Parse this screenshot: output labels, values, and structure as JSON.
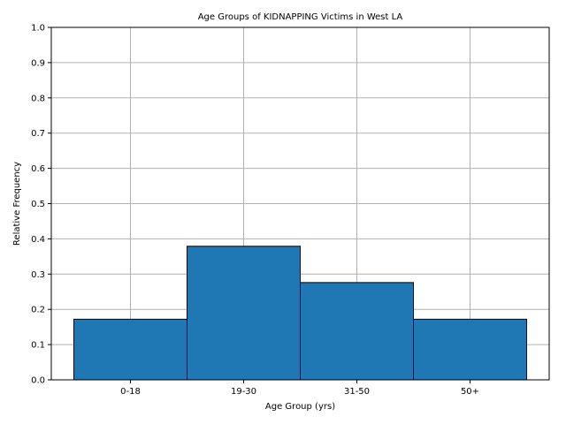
{
  "chart_data": {
    "type": "bar",
    "title": "Age Groups of KIDNAPPING Victims in West LA",
    "xlabel": "Age Group (yrs)",
    "ylabel": "Relative Frequency",
    "categories": [
      "0-18",
      "19-30",
      "31-50",
      "50+"
    ],
    "values": [
      0.172,
      0.379,
      0.276,
      0.172
    ],
    "ylim": [
      0,
      1.0
    ],
    "yticks": [
      "0.0",
      "0.1",
      "0.2",
      "0.3",
      "0.4",
      "0.5",
      "0.6",
      "0.7",
      "0.8",
      "0.9",
      "1.0"
    ],
    "grid": true,
    "legend": "none",
    "bar_color": "#1f77b4",
    "edge_color": "#000000",
    "grid_color": "#b0b0b0"
  }
}
